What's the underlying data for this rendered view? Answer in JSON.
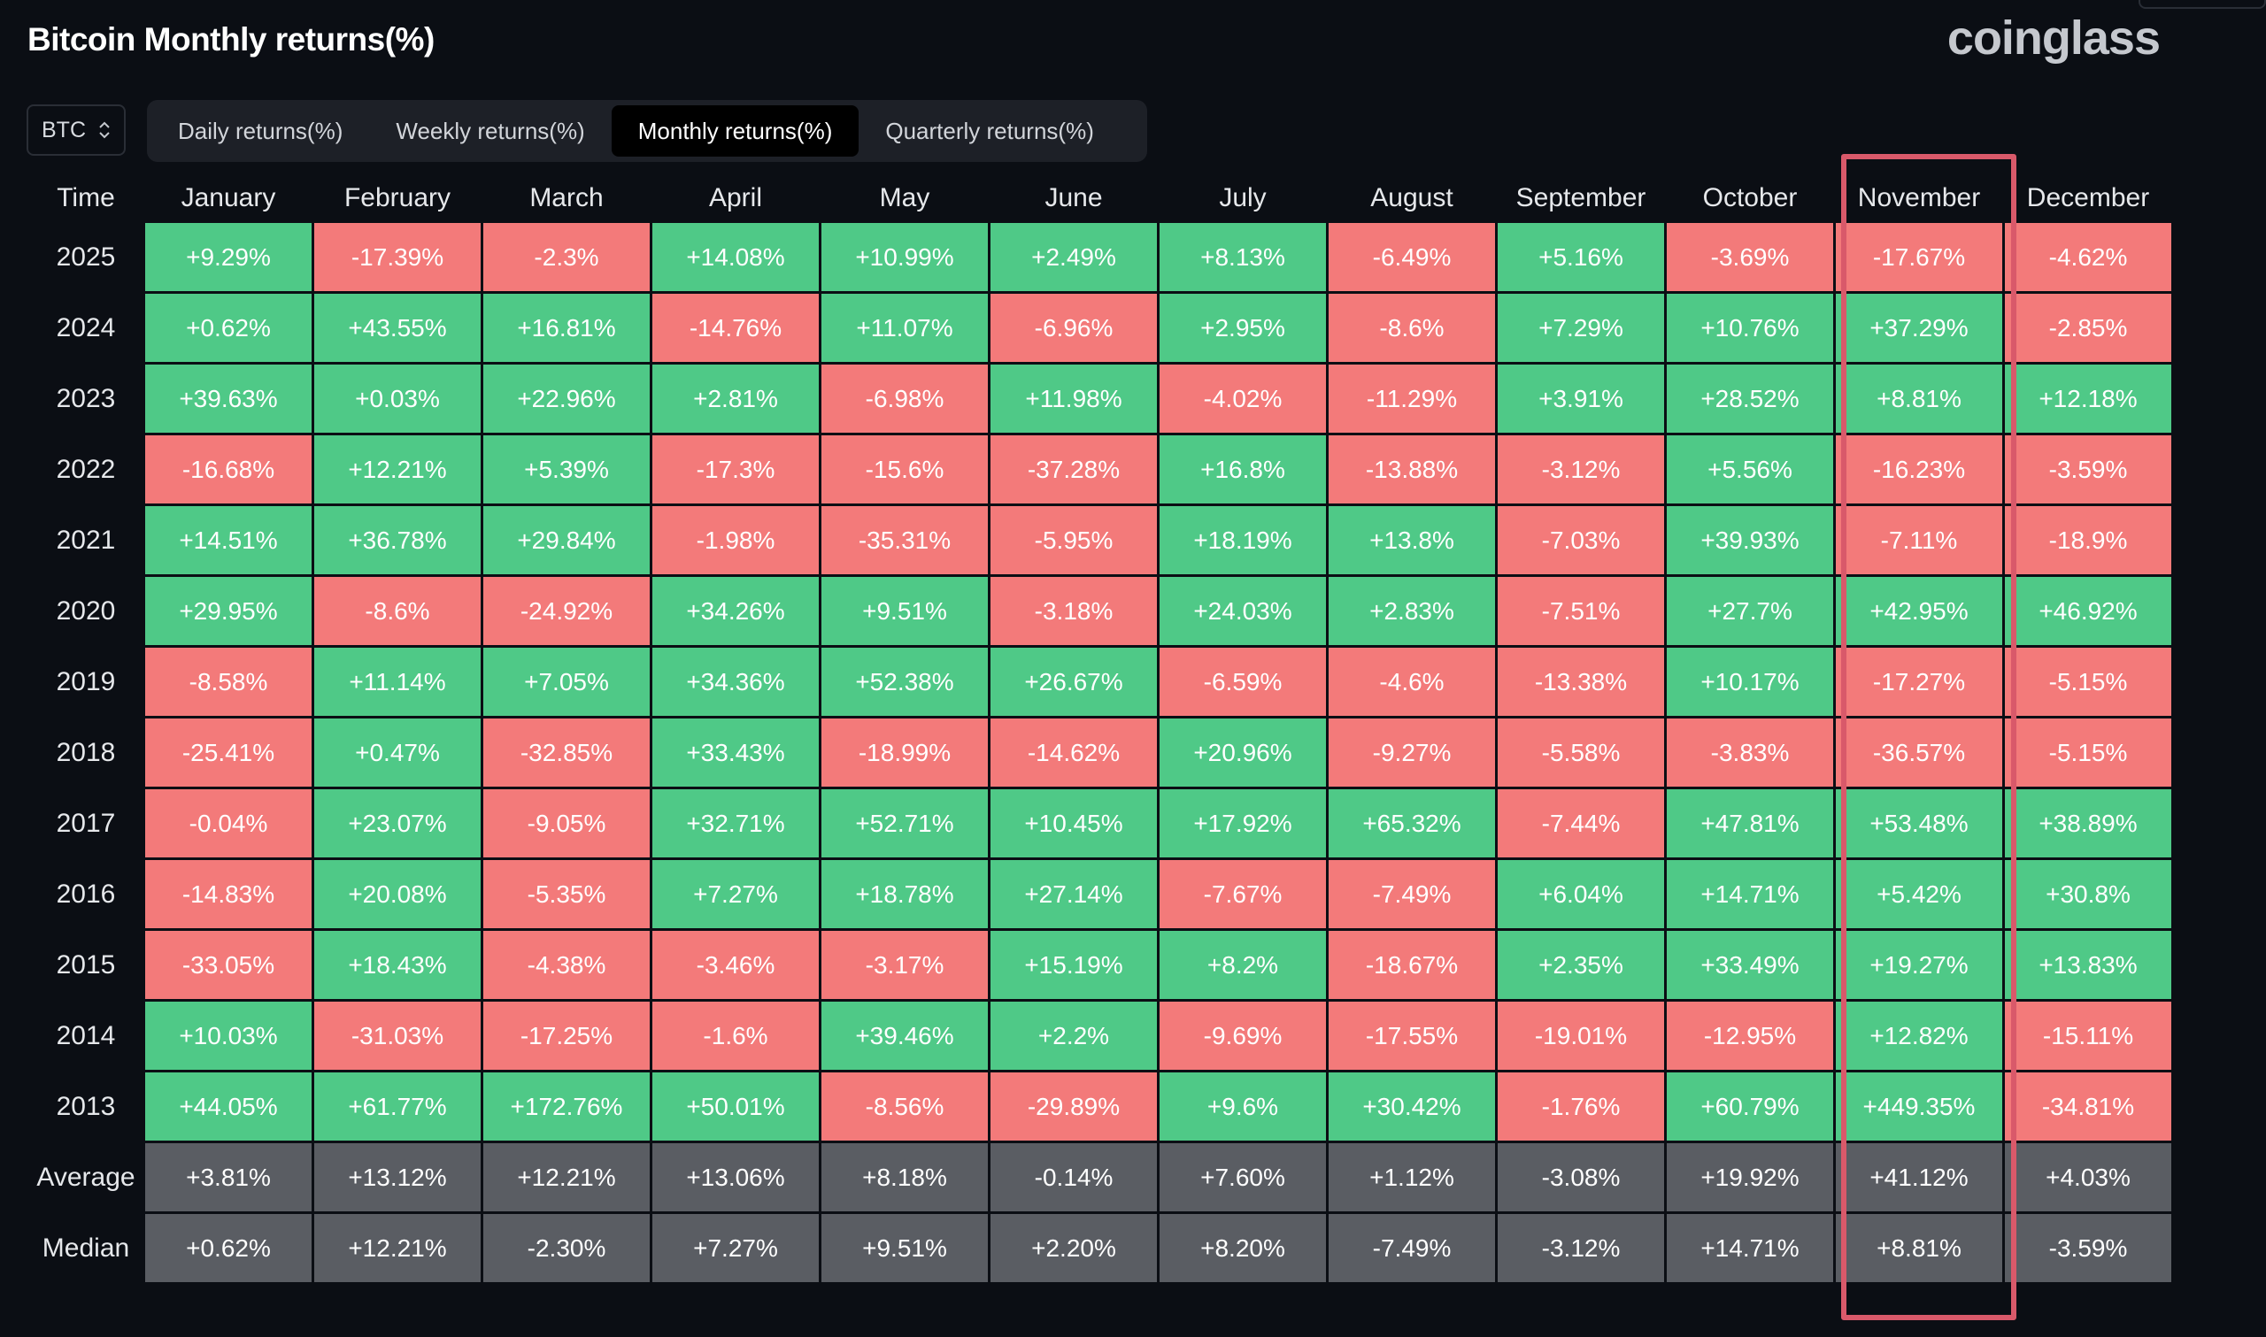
{
  "header": {
    "title": "Bitcoin Monthly returns(%)",
    "brand": "coinglass"
  },
  "asset_select": {
    "value": "BTC",
    "icon": "sort-chevron-icon"
  },
  "tabs": [
    {
      "label": "Daily returns(%)",
      "active": false
    },
    {
      "label": "Weekly returns(%)",
      "active": false
    },
    {
      "label": "Monthly returns(%)",
      "active": true
    },
    {
      "label": "Quarterly returns(%)",
      "active": false
    }
  ],
  "table": {
    "time_header": "Time",
    "months": [
      "January",
      "February",
      "March",
      "April",
      "May",
      "June",
      "July",
      "August",
      "September",
      "October",
      "November",
      "December"
    ],
    "highlighted_month": "November",
    "rows": [
      {
        "year": "2025",
        "values": [
          "+9.29%",
          "-17.39%",
          "-2.3%",
          "+14.08%",
          "+10.99%",
          "+2.49%",
          "+8.13%",
          "-6.49%",
          "+5.16%",
          "-3.69%",
          "-17.67%",
          "-4.62%"
        ]
      },
      {
        "year": "2024",
        "values": [
          "+0.62%",
          "+43.55%",
          "+16.81%",
          "-14.76%",
          "+11.07%",
          "-6.96%",
          "+2.95%",
          "-8.6%",
          "+7.29%",
          "+10.76%",
          "+37.29%",
          "-2.85%"
        ]
      },
      {
        "year": "2023",
        "values": [
          "+39.63%",
          "+0.03%",
          "+22.96%",
          "+2.81%",
          "-6.98%",
          "+11.98%",
          "-4.02%",
          "-11.29%",
          "+3.91%",
          "+28.52%",
          "+8.81%",
          "+12.18%"
        ]
      },
      {
        "year": "2022",
        "values": [
          "-16.68%",
          "+12.21%",
          "+5.39%",
          "-17.3%",
          "-15.6%",
          "-37.28%",
          "+16.8%",
          "-13.88%",
          "-3.12%",
          "+5.56%",
          "-16.23%",
          "-3.59%"
        ]
      },
      {
        "year": "2021",
        "values": [
          "+14.51%",
          "+36.78%",
          "+29.84%",
          "-1.98%",
          "-35.31%",
          "-5.95%",
          "+18.19%",
          "+13.8%",
          "-7.03%",
          "+39.93%",
          "-7.11%",
          "-18.9%"
        ]
      },
      {
        "year": "2020",
        "values": [
          "+29.95%",
          "-8.6%",
          "-24.92%",
          "+34.26%",
          "+9.51%",
          "-3.18%",
          "+24.03%",
          "+2.83%",
          "-7.51%",
          "+27.7%",
          "+42.95%",
          "+46.92%"
        ]
      },
      {
        "year": "2019",
        "values": [
          "-8.58%",
          "+11.14%",
          "+7.05%",
          "+34.36%",
          "+52.38%",
          "+26.67%",
          "-6.59%",
          "-4.6%",
          "-13.38%",
          "+10.17%",
          "-17.27%",
          "-5.15%"
        ]
      },
      {
        "year": "2018",
        "values": [
          "-25.41%",
          "+0.47%",
          "-32.85%",
          "+33.43%",
          "-18.99%",
          "-14.62%",
          "+20.96%",
          "-9.27%",
          "-5.58%",
          "-3.83%",
          "-36.57%",
          "-5.15%"
        ]
      },
      {
        "year": "2017",
        "values": [
          "-0.04%",
          "+23.07%",
          "-9.05%",
          "+32.71%",
          "+52.71%",
          "+10.45%",
          "+17.92%",
          "+65.32%",
          "-7.44%",
          "+47.81%",
          "+53.48%",
          "+38.89%"
        ]
      },
      {
        "year": "2016",
        "values": [
          "-14.83%",
          "+20.08%",
          "-5.35%",
          "+7.27%",
          "+18.78%",
          "+27.14%",
          "-7.67%",
          "-7.49%",
          "+6.04%",
          "+14.71%",
          "+5.42%",
          "+30.8%"
        ]
      },
      {
        "year": "2015",
        "values": [
          "-33.05%",
          "+18.43%",
          "-4.38%",
          "-3.46%",
          "-3.17%",
          "+15.19%",
          "+8.2%",
          "-18.67%",
          "+2.35%",
          "+33.49%",
          "+19.27%",
          "+13.83%"
        ]
      },
      {
        "year": "2014",
        "values": [
          "+10.03%",
          "-31.03%",
          "-17.25%",
          "-1.6%",
          "+39.46%",
          "+2.2%",
          "-9.69%",
          "-17.55%",
          "-19.01%",
          "-12.95%",
          "+12.82%",
          "-15.11%"
        ]
      },
      {
        "year": "2013",
        "values": [
          "+44.05%",
          "+61.77%",
          "+172.76%",
          "+50.01%",
          "-8.56%",
          "-29.89%",
          "+9.6%",
          "+30.42%",
          "-1.76%",
          "+60.79%",
          "+449.35%",
          "-34.81%"
        ]
      }
    ],
    "summary_rows": [
      {
        "label": "Average",
        "values": [
          "+3.81%",
          "+13.12%",
          "+12.21%",
          "+13.06%",
          "+8.18%",
          "-0.14%",
          "+7.60%",
          "+1.12%",
          "-3.08%",
          "+19.92%",
          "+41.12%",
          "+4.03%"
        ]
      },
      {
        "label": "Median",
        "values": [
          "+0.62%",
          "+12.21%",
          "-2.30%",
          "+7.27%",
          "+9.51%",
          "+2.20%",
          "+8.20%",
          "-7.49%",
          "-3.12%",
          "+14.71%",
          "+8.81%",
          "-3.59%"
        ]
      }
    ]
  },
  "colors": {
    "positive": "#4fc987",
    "negative": "#f37a7a",
    "summary": "#5a5d63",
    "highlight": "#d9596a"
  }
}
